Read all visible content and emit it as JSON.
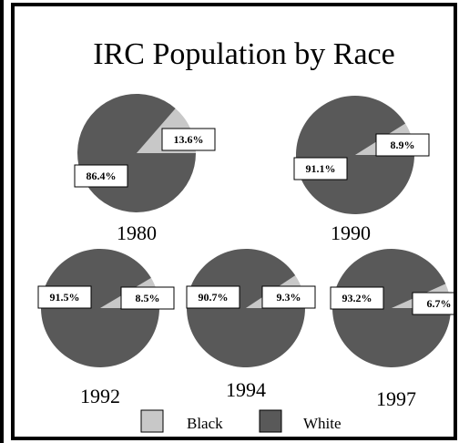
{
  "title": "IRC Population by Race",
  "chart_data": [
    {
      "type": "pie",
      "title": "1980",
      "categories": [
        "Black",
        "White"
      ],
      "values": [
        13.6,
        86.4
      ],
      "value_labels": [
        "13.6%",
        "86.4%"
      ],
      "colors": [
        "#c8c8c8",
        "#595959"
      ]
    },
    {
      "type": "pie",
      "title": "1990",
      "categories": [
        "Black",
        "White"
      ],
      "values": [
        8.9,
        91.1
      ],
      "value_labels": [
        "8.9%",
        "91.1%"
      ],
      "colors": [
        "#c8c8c8",
        "#595959"
      ]
    },
    {
      "type": "pie",
      "title": "1992",
      "categories": [
        "Black",
        "White"
      ],
      "values": [
        8.5,
        91.5
      ],
      "value_labels": [
        "8.5%",
        "91.5%"
      ],
      "colors": [
        "#c8c8c8",
        "#595959"
      ]
    },
    {
      "type": "pie",
      "title": "1994",
      "categories": [
        "Black",
        "White"
      ],
      "values": [
        9.3,
        90.7
      ],
      "value_labels": [
        "9.3%",
        "90.7%"
      ],
      "colors": [
        "#c8c8c8",
        "#595959"
      ]
    },
    {
      "type": "pie",
      "title": "1997",
      "categories": [
        "Black",
        "White"
      ],
      "values": [
        6.7,
        93.2
      ],
      "value_labels": [
        "6.7%",
        "93.2%"
      ],
      "colors": [
        "#c8c8c8",
        "#595959"
      ]
    }
  ]
}
